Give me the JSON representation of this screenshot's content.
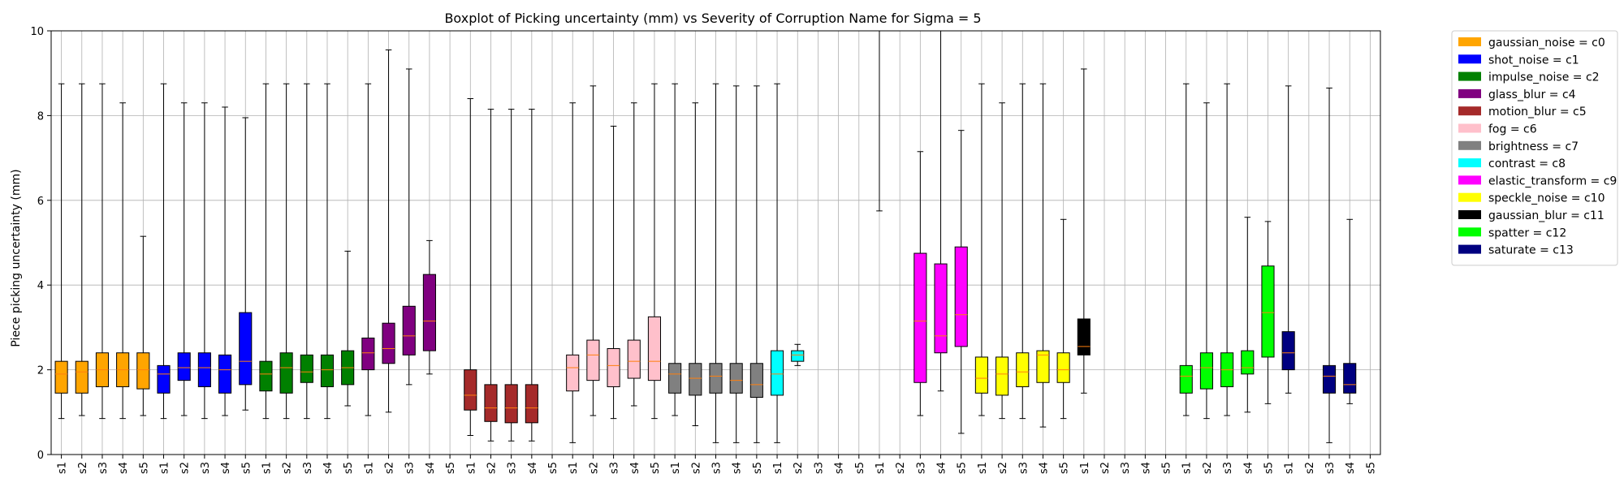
{
  "chart_data": {
    "type": "boxplot",
    "title": "Boxplot of Picking uncertainty (mm) vs Severity of Corruption Name for Sigma = 5",
    "xlabel": "",
    "ylabel": "Piece picking uncertainty (mm)",
    "ylim": [
      0,
      10
    ],
    "yticks": [
      0,
      2,
      4,
      6,
      8,
      10
    ],
    "grid": true,
    "legend_position": "outside-top-right",
    "severities": [
      "s1",
      "s2",
      "s3",
      "s4",
      "s5"
    ],
    "groups": [
      {
        "name": "gaussian_noise = c0",
        "color": "#ffa500",
        "boxes": [
          {
            "sev": "s1",
            "whislo": 0.85,
            "q1": 1.45,
            "med": 1.9,
            "q3": 2.2,
            "whishi": 8.75
          },
          {
            "sev": "s2",
            "whislo": 0.92,
            "q1": 1.45,
            "med": 1.95,
            "q3": 2.2,
            "whishi": 8.75
          },
          {
            "sev": "s3",
            "whislo": 0.85,
            "q1": 1.6,
            "med": 2.0,
            "q3": 2.4,
            "whishi": 8.75
          },
          {
            "sev": "s4",
            "whislo": 0.85,
            "q1": 1.6,
            "med": 2.0,
            "q3": 2.4,
            "whishi": 8.3
          },
          {
            "sev": "s5",
            "whislo": 0.92,
            "q1": 1.55,
            "med": 2.0,
            "q3": 2.4,
            "whishi": 5.15
          }
        ]
      },
      {
        "name": "shot_noise = c1",
        "color": "#0000ff",
        "boxes": [
          {
            "sev": "s1",
            "whislo": 0.85,
            "q1": 1.45,
            "med": 1.9,
            "q3": 2.1,
            "whishi": 8.75
          },
          {
            "sev": "s2",
            "whislo": 0.92,
            "q1": 1.75,
            "med": 2.05,
            "q3": 2.4,
            "whishi": 8.3
          },
          {
            "sev": "s3",
            "whislo": 0.85,
            "q1": 1.6,
            "med": 2.05,
            "q3": 2.4,
            "whishi": 8.3
          },
          {
            "sev": "s4",
            "whislo": 0.92,
            "q1": 1.45,
            "med": 2.0,
            "q3": 2.35,
            "whishi": 8.2
          },
          {
            "sev": "s5",
            "whislo": 1.05,
            "q1": 1.65,
            "med": 2.2,
            "q3": 3.35,
            "whishi": 7.95
          }
        ]
      },
      {
        "name": "impulse_noise = c2",
        "color": "#008000",
        "boxes": [
          {
            "sev": "s1",
            "whislo": 0.85,
            "q1": 1.5,
            "med": 1.9,
            "q3": 2.2,
            "whishi": 8.75
          },
          {
            "sev": "s2",
            "whislo": 0.85,
            "q1": 1.45,
            "med": 2.05,
            "q3": 2.4,
            "whishi": 8.75
          },
          {
            "sev": "s3",
            "whislo": 0.85,
            "q1": 1.7,
            "med": 1.95,
            "q3": 2.35,
            "whishi": 8.75
          },
          {
            "sev": "s4",
            "whislo": 0.85,
            "q1": 1.6,
            "med": 2.0,
            "q3": 2.35,
            "whishi": 8.75
          },
          {
            "sev": "s5",
            "whislo": 1.15,
            "q1": 1.65,
            "med": 2.05,
            "q3": 2.45,
            "whishi": 4.8
          }
        ]
      },
      {
        "name": "glass_blur = c4",
        "color": "#800080",
        "boxes": [
          {
            "sev": "s1",
            "whislo": 0.92,
            "q1": 2.0,
            "med": 2.4,
            "q3": 2.75,
            "whishi": 8.75
          },
          {
            "sev": "s2",
            "whislo": 1.0,
            "q1": 2.15,
            "med": 2.5,
            "q3": 3.1,
            "whishi": 9.55
          },
          {
            "sev": "s3",
            "whislo": 1.65,
            "q1": 2.35,
            "med": 2.8,
            "q3": 3.5,
            "whishi": 9.1
          },
          {
            "sev": "s4",
            "whislo": 1.9,
            "q1": 2.45,
            "med": 3.15,
            "q3": 4.25,
            "whishi": 5.05
          },
          {
            "sev": "s5",
            "empty": true
          }
        ]
      },
      {
        "name": "motion_blur = c5",
        "color": "#a52a2a",
        "boxes": [
          {
            "sev": "s1",
            "whislo": 0.45,
            "q1": 1.05,
            "med": 1.4,
            "q3": 2.0,
            "whishi": 8.4
          },
          {
            "sev": "s2",
            "whislo": 0.32,
            "q1": 0.78,
            "med": 1.1,
            "q3": 1.65,
            "whishi": 8.15
          },
          {
            "sev": "s3",
            "whislo": 0.32,
            "q1": 0.75,
            "med": 1.1,
            "q3": 1.65,
            "whishi": 8.15
          },
          {
            "sev": "s4",
            "whislo": 0.32,
            "q1": 0.75,
            "med": 1.1,
            "q3": 1.65,
            "whishi": 8.15
          },
          {
            "sev": "s5",
            "empty": true
          }
        ]
      },
      {
        "name": "fog = c6",
        "color": "#ffc0cb",
        "boxes": [
          {
            "sev": "s1",
            "whislo": 0.28,
            "q1": 1.5,
            "med": 2.05,
            "q3": 2.35,
            "whishi": 8.3
          },
          {
            "sev": "s2",
            "whislo": 0.92,
            "q1": 1.75,
            "med": 2.35,
            "q3": 2.7,
            "whishi": 8.7
          },
          {
            "sev": "s3",
            "whislo": 0.85,
            "q1": 1.6,
            "med": 2.1,
            "q3": 2.5,
            "whishi": 7.75
          },
          {
            "sev": "s4",
            "whislo": 1.15,
            "q1": 1.8,
            "med": 2.2,
            "q3": 2.7,
            "whishi": 8.3
          },
          {
            "sev": "s5",
            "whislo": 0.85,
            "q1": 1.75,
            "med": 2.2,
            "q3": 3.25,
            "whishi": 8.75
          }
        ]
      },
      {
        "name": "brightness = c7",
        "color": "#808080",
        "boxes": [
          {
            "sev": "s1",
            "whislo": 0.92,
            "q1": 1.45,
            "med": 1.9,
            "q3": 2.15,
            "whishi": 8.75
          },
          {
            "sev": "s2",
            "whislo": 0.68,
            "q1": 1.4,
            "med": 1.8,
            "q3": 2.15,
            "whishi": 8.3
          },
          {
            "sev": "s3",
            "whislo": 0.28,
            "q1": 1.45,
            "med": 1.85,
            "q3": 2.15,
            "whishi": 8.75
          },
          {
            "sev": "s4",
            "whislo": 0.28,
            "q1": 1.45,
            "med": 1.75,
            "q3": 2.15,
            "whishi": 8.7
          },
          {
            "sev": "s5",
            "whislo": 0.28,
            "q1": 1.35,
            "med": 1.65,
            "q3": 2.15,
            "whishi": 8.7
          }
        ]
      },
      {
        "name": "contrast = c8",
        "color": "#00ffff",
        "boxes": [
          {
            "sev": "s1",
            "whislo": 0.28,
            "q1": 1.4,
            "med": 1.9,
            "q3": 2.45,
            "whishi": 8.75
          },
          {
            "sev": "s2",
            "whislo": 2.1,
            "q1": 2.2,
            "med": 2.35,
            "q3": 2.45,
            "whishi": 2.6
          },
          {
            "sev": "s3",
            "empty": true
          },
          {
            "sev": "s4",
            "empty": true
          },
          {
            "sev": "s5",
            "empty": true
          }
        ]
      },
      {
        "name": "elastic_transform = c9",
        "color": "#ff00ff",
        "boxes": [
          {
            "sev": "s1",
            "whislo": 5.75,
            "q1": 10.5,
            "med": 10.6,
            "q3": 10.8,
            "whishi": 11.0
          },
          {
            "sev": "s2",
            "empty": true
          },
          {
            "sev": "s3",
            "whislo": 0.92,
            "q1": 1.7,
            "med": 3.15,
            "q3": 4.75,
            "whishi": 7.15
          },
          {
            "sev": "s4",
            "whislo": 1.5,
            "q1": 2.4,
            "med": 2.8,
            "q3": 4.5,
            "whishi": 10.0
          },
          {
            "sev": "s5",
            "whislo": 0.5,
            "q1": 2.55,
            "med": 3.3,
            "q3": 4.9,
            "whishi": 7.65
          }
        ]
      },
      {
        "name": "speckle_noise = c10",
        "color": "#ffff00",
        "boxes": [
          {
            "sev": "s1",
            "whislo": 0.92,
            "q1": 1.45,
            "med": 1.8,
            "q3": 2.3,
            "whishi": 8.75
          },
          {
            "sev": "s2",
            "whislo": 0.85,
            "q1": 1.4,
            "med": 1.9,
            "q3": 2.3,
            "whishi": 8.3
          },
          {
            "sev": "s3",
            "whislo": 0.85,
            "q1": 1.6,
            "med": 1.95,
            "q3": 2.4,
            "whishi": 8.75
          },
          {
            "sev": "s4",
            "whislo": 0.65,
            "q1": 1.7,
            "med": 2.35,
            "q3": 2.45,
            "whishi": 8.75
          },
          {
            "sev": "s5",
            "whislo": 0.85,
            "q1": 1.7,
            "med": 2.0,
            "q3": 2.4,
            "whishi": 5.55
          }
        ]
      },
      {
        "name": "gaussian_blur = c11",
        "color": "#000000",
        "boxes": [
          {
            "sev": "s1",
            "whislo": 1.45,
            "q1": 2.35,
            "med": 2.55,
            "q3": 3.2,
            "whishi": 9.1
          },
          {
            "sev": "s2",
            "empty": true
          },
          {
            "sev": "s3",
            "empty": true
          },
          {
            "sev": "s4",
            "empty": true
          },
          {
            "sev": "s5",
            "empty": true
          }
        ]
      },
      {
        "name": "spatter = c12",
        "color": "#00ff00",
        "boxes": [
          {
            "sev": "s1",
            "whislo": 0.92,
            "q1": 1.45,
            "med": 1.85,
            "q3": 2.1,
            "whishi": 8.75
          },
          {
            "sev": "s2",
            "whislo": 0.85,
            "q1": 1.55,
            "med": 2.05,
            "q3": 2.4,
            "whishi": 8.3
          },
          {
            "sev": "s3",
            "whislo": 0.92,
            "q1": 1.6,
            "med": 2.0,
            "q3": 2.4,
            "whishi": 8.75
          },
          {
            "sev": "s4",
            "whislo": 1.0,
            "q1": 1.9,
            "med": 2.05,
            "q3": 2.45,
            "whishi": 5.6
          },
          {
            "sev": "s5",
            "whislo": 1.2,
            "q1": 2.3,
            "med": 3.35,
            "q3": 4.45,
            "whishi": 5.5
          }
        ]
      },
      {
        "name": "saturate = c13",
        "color": "#000080",
        "boxes": [
          {
            "sev": "s1",
            "whislo": 1.45,
            "q1": 2.0,
            "med": 2.4,
            "q3": 2.9,
            "whishi": 8.7
          },
          {
            "sev": "s2",
            "empty": true
          },
          {
            "sev": "s3",
            "whislo": 0.28,
            "q1": 1.45,
            "med": 1.85,
            "q3": 2.1,
            "whishi": 8.65
          },
          {
            "sev": "s4",
            "whislo": 1.2,
            "q1": 1.45,
            "med": 1.65,
            "q3": 2.15,
            "whishi": 5.55
          },
          {
            "sev": "s5",
            "empty": true
          }
        ]
      }
    ]
  }
}
